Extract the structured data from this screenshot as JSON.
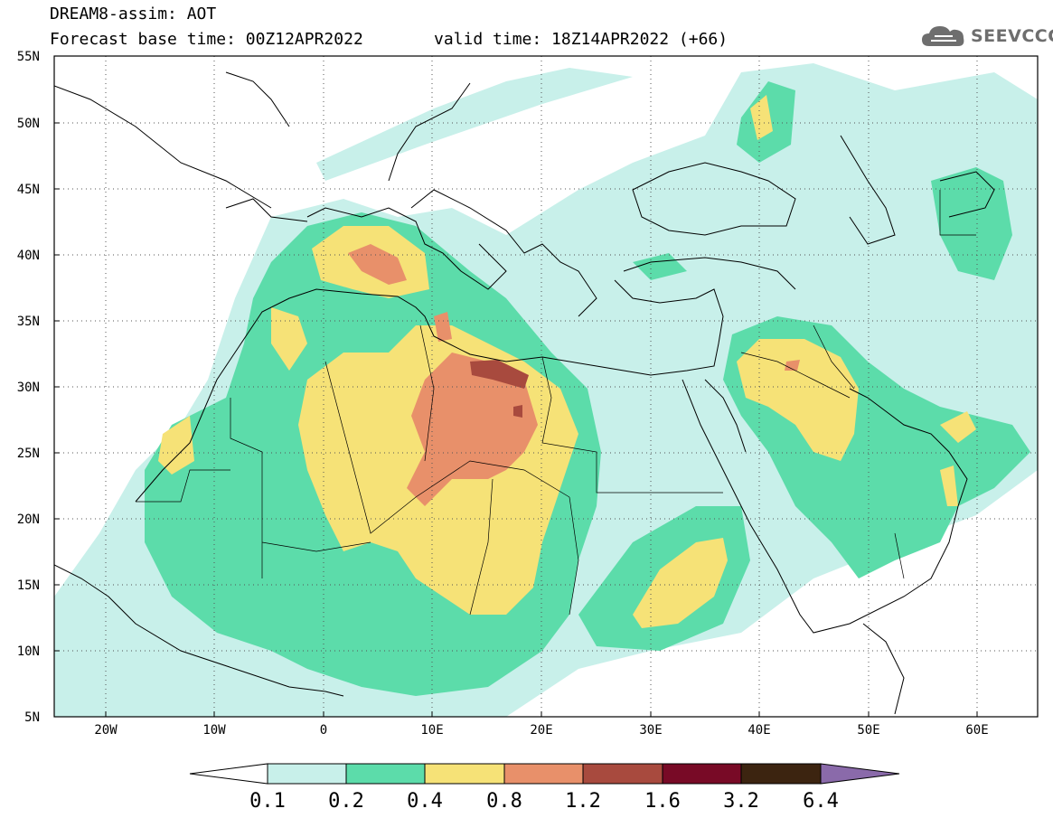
{
  "header": {
    "title": "DREAM8-assim: AOT",
    "base_time": "Forecast base time: 00Z12APR2022",
    "valid_time": "valid time: 18Z14APR2022 (+66)",
    "logo": "SEEVCCC"
  },
  "map": {
    "projection": "lat-lon",
    "lon_range": [
      -25,
      65
    ],
    "lat_range": [
      5,
      55
    ],
    "lat_ticks": [
      "55N",
      "50N",
      "45N",
      "40N",
      "35N",
      "30N",
      "25N",
      "20N",
      "15N",
      "10N",
      "5N"
    ],
    "lon_ticks": [
      "20W",
      "10W",
      "0",
      "10E",
      "20E",
      "30E",
      "40E",
      "50E",
      "60E"
    ],
    "grid": "dotted"
  },
  "legend": {
    "labels": [
      "0.1",
      "0.2",
      "0.4",
      "0.8",
      "1.2",
      "1.6",
      "3.2",
      "6.4"
    ],
    "colors": [
      "#ffffff",
      "#c8f0ea",
      "#5cdcaa",
      "#f6e277",
      "#e8906a",
      "#a84a3e",
      "#780a26",
      "#3c2410",
      "#8a6aaa"
    ]
  }
}
